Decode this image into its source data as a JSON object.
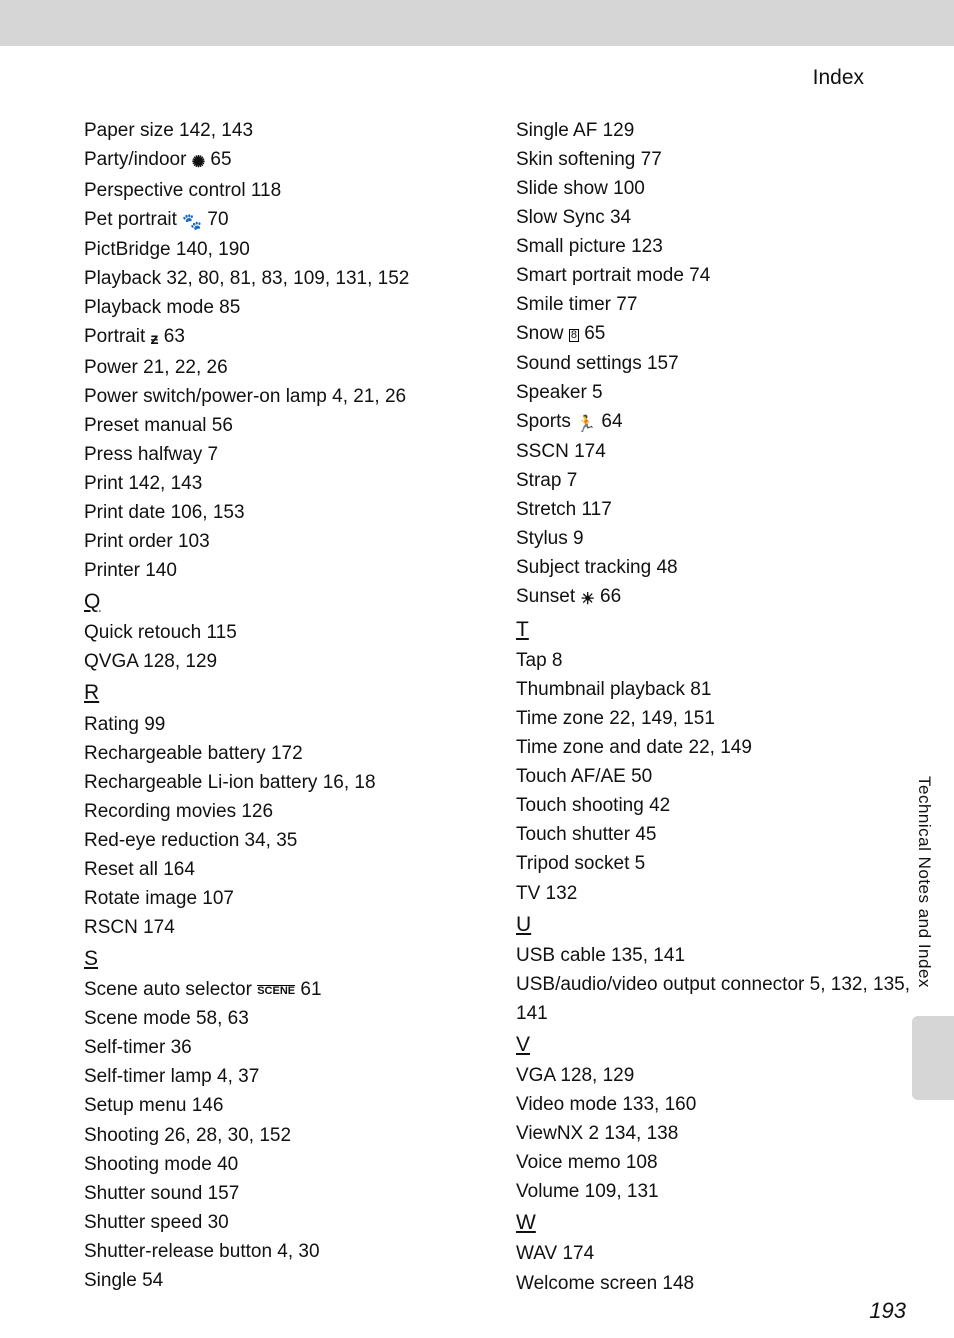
{
  "header": {
    "title": "Index"
  },
  "side_label": "Technical Notes and Index",
  "page_number": "193",
  "left_column": [
    {
      "type": "entry",
      "text": "Paper size 142, 143"
    },
    {
      "type": "entry_icon",
      "before": "Party/indoor ",
      "icon": "✺",
      "after": " 65"
    },
    {
      "type": "entry",
      "text": "Perspective control 118"
    },
    {
      "type": "entry_icon",
      "before": "Pet portrait ",
      "icon": "🐾",
      "after": " 70"
    },
    {
      "type": "entry",
      "text": "PictBridge 140, 190"
    },
    {
      "type": "entry",
      "text": "Playback 32, 80, 81, 83, 109, 131, 152"
    },
    {
      "type": "entry",
      "text": "Playback mode 85"
    },
    {
      "type": "entry_icon",
      "before": "Portrait ",
      "icon": "ƶ",
      "after": " 63"
    },
    {
      "type": "entry",
      "text": "Power 21, 22, 26"
    },
    {
      "type": "entry",
      "text": "Power switch/power-on lamp 4, 21, 26"
    },
    {
      "type": "entry",
      "text": "Preset manual 56"
    },
    {
      "type": "entry",
      "text": "Press halfway 7"
    },
    {
      "type": "entry",
      "text": "Print 142, 143"
    },
    {
      "type": "entry",
      "text": "Print date 106, 153"
    },
    {
      "type": "entry",
      "text": "Print order 103"
    },
    {
      "type": "entry",
      "text": "Printer 140"
    },
    {
      "type": "letter",
      "text": "Q"
    },
    {
      "type": "entry",
      "text": "Quick retouch 115"
    },
    {
      "type": "entry",
      "text": "QVGA 128, 129"
    },
    {
      "type": "letter",
      "text": "R"
    },
    {
      "type": "entry",
      "text": "Rating 99"
    },
    {
      "type": "entry",
      "text": "Rechargeable battery 172"
    },
    {
      "type": "entry",
      "text": "Rechargeable Li-ion battery 16, 18"
    },
    {
      "type": "entry",
      "text": "Recording movies 126"
    },
    {
      "type": "entry",
      "text": "Red-eye reduction 34, 35"
    },
    {
      "type": "entry",
      "text": "Reset all 164"
    },
    {
      "type": "entry",
      "text": "Rotate image 107"
    },
    {
      "type": "entry",
      "text": "RSCN 174"
    },
    {
      "type": "letter",
      "text": "S"
    },
    {
      "type": "entry_scene",
      "before": "Scene auto selector ",
      "icon": "SCENE",
      "after": " 61"
    },
    {
      "type": "entry",
      "text": "Scene mode 58, 63"
    },
    {
      "type": "entry",
      "text": "Self-timer 36"
    },
    {
      "type": "entry",
      "text": "Self-timer lamp 4, 37"
    },
    {
      "type": "entry",
      "text": "Setup menu 146"
    },
    {
      "type": "entry",
      "text": "Shooting 26, 28, 30, 152"
    },
    {
      "type": "entry",
      "text": "Shooting mode 40"
    },
    {
      "type": "entry",
      "text": "Shutter sound 157"
    },
    {
      "type": "entry",
      "text": "Shutter speed 30"
    },
    {
      "type": "entry",
      "text": "Shutter-release button 4, 30"
    },
    {
      "type": "entry",
      "text": "Single 54"
    }
  ],
  "right_column": [
    {
      "type": "entry",
      "text": "Single AF 129"
    },
    {
      "type": "entry",
      "text": "Skin softening 77"
    },
    {
      "type": "entry",
      "text": "Slide show 100"
    },
    {
      "type": "entry",
      "text": "Slow Sync 34"
    },
    {
      "type": "entry",
      "text": "Small picture 123"
    },
    {
      "type": "entry",
      "text": "Smart portrait mode 74"
    },
    {
      "type": "entry",
      "text": "Smile timer 77"
    },
    {
      "type": "entry_box",
      "before": "Snow ",
      "icon": "8",
      "after": " 65"
    },
    {
      "type": "entry",
      "text": "Sound settings 157"
    },
    {
      "type": "entry",
      "text": "Speaker 5"
    },
    {
      "type": "entry_icon",
      "before": "Sports ",
      "icon": "🏃",
      "after": " 64"
    },
    {
      "type": "entry",
      "text": "SSCN 174"
    },
    {
      "type": "entry",
      "text": "Strap 7"
    },
    {
      "type": "entry",
      "text": "Stretch 117"
    },
    {
      "type": "entry",
      "text": "Stylus 9"
    },
    {
      "type": "entry",
      "text": "Subject tracking 48"
    },
    {
      "type": "entry_icon",
      "before": "Sunset ",
      "icon": "☀",
      "after": " 66"
    },
    {
      "type": "letter",
      "text": "T"
    },
    {
      "type": "entry",
      "text": "Tap 8"
    },
    {
      "type": "entry",
      "text": "Thumbnail playback 81"
    },
    {
      "type": "entry",
      "text": "Time zone 22, 149, 151"
    },
    {
      "type": "entry",
      "text": "Time zone and date 22, 149"
    },
    {
      "type": "entry",
      "text": "Touch AF/AE 50"
    },
    {
      "type": "entry",
      "text": "Touch shooting 42"
    },
    {
      "type": "entry",
      "text": "Touch shutter 45"
    },
    {
      "type": "entry",
      "text": "Tripod socket 5"
    },
    {
      "type": "entry",
      "text": "TV 132"
    },
    {
      "type": "letter",
      "text": "U"
    },
    {
      "type": "entry",
      "text": "USB cable 135, 141"
    },
    {
      "type": "entry_wrap",
      "text": "USB/audio/video output connector 5, 132, 135, 141"
    },
    {
      "type": "letter",
      "text": "V"
    },
    {
      "type": "entry",
      "text": "VGA 128, 129"
    },
    {
      "type": "entry",
      "text": "Video mode 133, 160"
    },
    {
      "type": "entry",
      "text": "ViewNX 2 134, 138"
    },
    {
      "type": "entry",
      "text": "Voice memo 108"
    },
    {
      "type": "entry",
      "text": "Volume 109, 131"
    },
    {
      "type": "letter",
      "text": "W"
    },
    {
      "type": "entry",
      "text": "WAV 174"
    },
    {
      "type": "entry",
      "text": "Welcome screen 148"
    }
  ]
}
